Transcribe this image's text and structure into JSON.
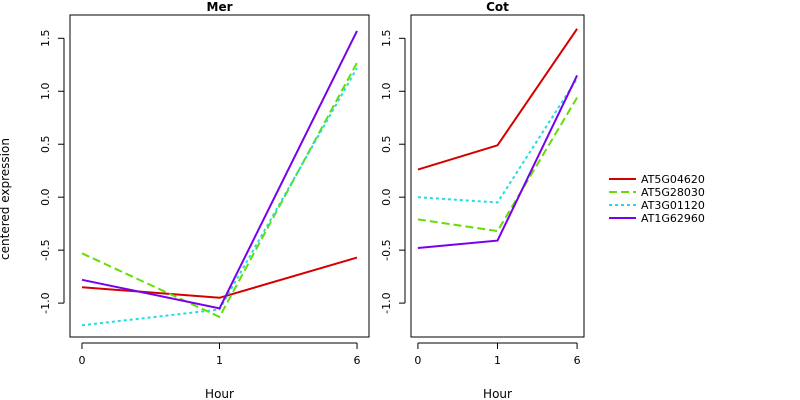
{
  "ylabel": "centered expression",
  "legend": {
    "position": "right",
    "entries": [
      "AT5G04620",
      "AT5G28030",
      "AT3G01120",
      "AT1G62960"
    ]
  },
  "style": {
    "colors": [
      "#d40000",
      "#66dd00",
      "#22dddd",
      "#7700ee"
    ],
    "dashes": [
      "solid",
      "dashed",
      "dotted",
      "solid"
    ]
  },
  "chart_data": [
    {
      "type": "line",
      "title": "Mer",
      "xlabel": "Hour",
      "categories": [
        "0",
        "1",
        "6"
      ],
      "ylim": [
        -1.32,
        1.72
      ],
      "yticks": [
        "-1.0",
        "-0.5",
        "0.0",
        "0.5",
        "1.0",
        "1.5"
      ],
      "series": [
        {
          "name": "AT5G04620",
          "values": [
            -0.85,
            -0.95,
            -0.57
          ]
        },
        {
          "name": "AT5G28030",
          "values": [
            -0.53,
            -1.13,
            1.27
          ]
        },
        {
          "name": "AT3G01120",
          "values": [
            -1.21,
            -1.06,
            1.22
          ]
        },
        {
          "name": "AT1G62960",
          "values": [
            -0.78,
            -1.05,
            1.57
          ]
        }
      ]
    },
    {
      "type": "line",
      "title": "Cot",
      "xlabel": "Hour",
      "categories": [
        "0",
        "1",
        "6"
      ],
      "ylim": [
        -1.32,
        1.72
      ],
      "yticks": [
        "-1.0",
        "-0.5",
        "0.0",
        "0.5",
        "1.0",
        "1.5"
      ],
      "series": [
        {
          "name": "AT5G04620",
          "values": [
            0.26,
            0.49,
            1.59
          ]
        },
        {
          "name": "AT5G28030",
          "values": [
            -0.21,
            -0.32,
            0.94
          ]
        },
        {
          "name": "AT3G01120",
          "values": [
            0.0,
            -0.05,
            1.12
          ]
        },
        {
          "name": "AT1G62960",
          "values": [
            -0.48,
            -0.41,
            1.15
          ]
        }
      ]
    }
  ]
}
